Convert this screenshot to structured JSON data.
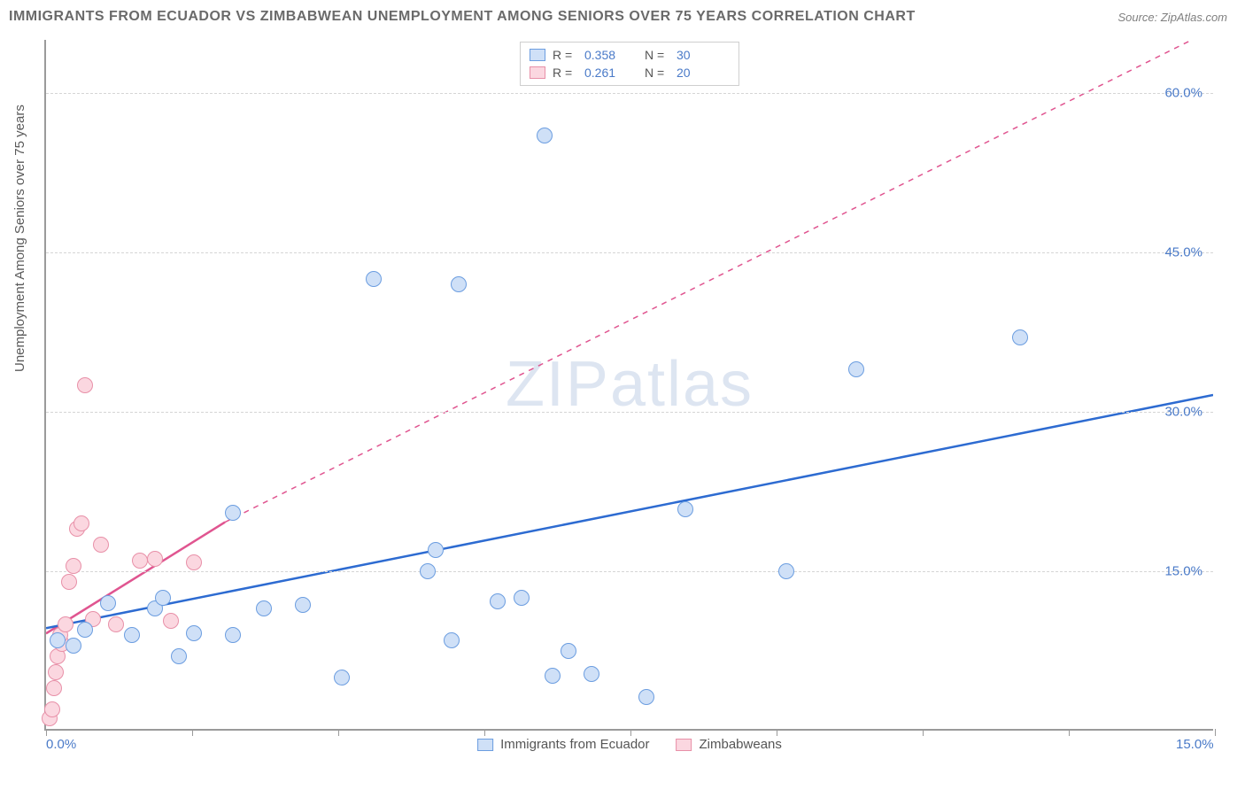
{
  "title": "IMMIGRANTS FROM ECUADOR VS ZIMBABWEAN UNEMPLOYMENT AMONG SENIORS OVER 75 YEARS CORRELATION CHART",
  "source": "Source: ZipAtlas.com",
  "y_axis_label": "Unemployment Among Seniors over 75 years",
  "watermark": "ZIPatlas",
  "chart": {
    "type": "scatter",
    "xlim": [
      0,
      15
    ],
    "ylim": [
      0,
      65
    ],
    "x_ticks": [
      0,
      1.875,
      3.75,
      5.625,
      7.5,
      9.375,
      11.25,
      13.125,
      15
    ],
    "y_gridlines": [
      15,
      30,
      45,
      60
    ],
    "y_tick_labels": [
      {
        "v": 15,
        "t": "15.0%"
      },
      {
        "v": 30,
        "t": "30.0%"
      },
      {
        "v": 45,
        "t": "45.0%"
      },
      {
        "v": 60,
        "t": "60.0%"
      }
    ],
    "x_tick_labels": [
      {
        "v": 0,
        "t": "0.0%"
      },
      {
        "v": 15,
        "t": "15.0%"
      }
    ],
    "background_color": "#ffffff",
    "grid_color": "#d5d5d5",
    "axis_color": "#9a9a9a"
  },
  "series": {
    "ecuador": {
      "label": "Immigrants from Ecuador",
      "color_fill": "#cfe0f7",
      "color_stroke": "#6b9de0",
      "marker_size": 18,
      "trend": {
        "x1": 0,
        "y1": 9.5,
        "x2": 15,
        "y2": 31.5,
        "color": "#2d6bd1",
        "dash": false,
        "width": 2.5,
        "ext_x2": 15,
        "ext_y2": 31.5
      },
      "R": "0.358",
      "N": "30",
      "points": [
        {
          "x": 0.15,
          "y": 8.5
        },
        {
          "x": 0.35,
          "y": 8.0
        },
        {
          "x": 0.5,
          "y": 9.5
        },
        {
          "x": 0.8,
          "y": 12.0
        },
        {
          "x": 1.1,
          "y": 9.0
        },
        {
          "x": 1.4,
          "y": 11.5
        },
        {
          "x": 1.7,
          "y": 7.0
        },
        {
          "x": 1.9,
          "y": 9.2
        },
        {
          "x": 1.5,
          "y": 12.5
        },
        {
          "x": 2.4,
          "y": 9.0
        },
        {
          "x": 2.8,
          "y": 11.5
        },
        {
          "x": 2.4,
          "y": 20.5
        },
        {
          "x": 3.3,
          "y": 11.8
        },
        {
          "x": 3.8,
          "y": 5.0
        },
        {
          "x": 4.2,
          "y": 42.5
        },
        {
          "x": 4.9,
          "y": 15.0
        },
        {
          "x": 5.0,
          "y": 17.0
        },
        {
          "x": 5.2,
          "y": 8.5
        },
        {
          "x": 5.3,
          "y": 42.0
        },
        {
          "x": 5.8,
          "y": 12.2
        },
        {
          "x": 6.1,
          "y": 12.5
        },
        {
          "x": 6.4,
          "y": 56.0
        },
        {
          "x": 6.5,
          "y": 5.2
        },
        {
          "x": 6.7,
          "y": 7.5
        },
        {
          "x": 7.0,
          "y": 5.3
        },
        {
          "x": 7.7,
          "y": 3.2
        },
        {
          "x": 8.2,
          "y": 20.8
        },
        {
          "x": 9.5,
          "y": 15.0
        },
        {
          "x": 10.4,
          "y": 34.0
        },
        {
          "x": 12.5,
          "y": 37.0
        }
      ]
    },
    "zimbabwe": {
      "label": "Zimbabweans",
      "color_fill": "#fbd7e0",
      "color_stroke": "#e890a8",
      "marker_size": 18,
      "trend": {
        "x1": 0,
        "y1": 9.0,
        "x2": 2.3,
        "y2": 19.5,
        "color": "#e05590",
        "dash": false,
        "width": 2.5,
        "ext_x2": 15,
        "ext_y2": 66.0,
        "ext_dash": true
      },
      "R": "0.261",
      "N": "20",
      "points": [
        {
          "x": 0.05,
          "y": 1.2
        },
        {
          "x": 0.1,
          "y": 4.0
        },
        {
          "x": 0.12,
          "y": 5.5
        },
        {
          "x": 0.15,
          "y": 7.0
        },
        {
          "x": 0.2,
          "y": 8.2
        },
        {
          "x": 0.18,
          "y": 9.0
        },
        {
          "x": 0.25,
          "y": 10.0
        },
        {
          "x": 0.3,
          "y": 14.0
        },
        {
          "x": 0.35,
          "y": 15.5
        },
        {
          "x": 0.4,
          "y": 19.0
        },
        {
          "x": 0.45,
          "y": 19.5
        },
        {
          "x": 0.5,
          "y": 32.5
        },
        {
          "x": 0.6,
          "y": 10.5
        },
        {
          "x": 0.7,
          "y": 17.5
        },
        {
          "x": 0.9,
          "y": 10.0
        },
        {
          "x": 1.2,
          "y": 16.0
        },
        {
          "x": 1.4,
          "y": 16.2
        },
        {
          "x": 1.6,
          "y": 10.3
        },
        {
          "x": 1.9,
          "y": 15.8
        },
        {
          "x": 0.08,
          "y": 2.0
        }
      ]
    }
  },
  "legend_top": {
    "rows": [
      {
        "sw_fill": "#cfe0f7",
        "sw_stroke": "#6b9de0",
        "r_label": "R =",
        "r_val": "0.358",
        "n_label": "N =",
        "n_val": "30"
      },
      {
        "sw_fill": "#fbd7e0",
        "sw_stroke": "#e890a8",
        "r_label": "R =",
        "r_val": "0.261",
        "n_label": "N =",
        "n_val": "20"
      }
    ]
  },
  "legend_bottom": {
    "items": [
      {
        "sw_fill": "#cfe0f7",
        "sw_stroke": "#6b9de0",
        "label": "Immigrants from Ecuador"
      },
      {
        "sw_fill": "#fbd7e0",
        "sw_stroke": "#e890a8",
        "label": "Zimbabweans"
      }
    ]
  }
}
